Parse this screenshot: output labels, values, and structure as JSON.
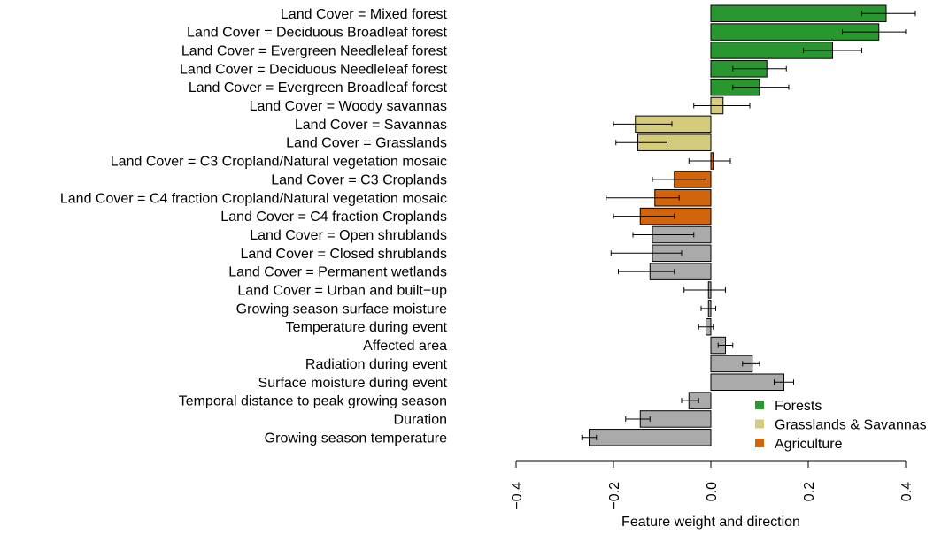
{
  "chart_data": {
    "type": "bar",
    "orientation": "horizontal",
    "xlabel": "Feature weight and direction",
    "ylabel": "",
    "xlim": [
      -0.4,
      0.4
    ],
    "x_ticks": [
      -0.4,
      -0.2,
      0.0,
      0.2,
      0.4
    ],
    "x_tick_labels": [
      "−0.4",
      "−0.2",
      "0.0",
      "0.2",
      "0.4"
    ],
    "grid": false,
    "legend_position": "bottom-right",
    "legend": [
      {
        "label": "Forests",
        "color": "#2a9630"
      },
      {
        "label": "Grasslands & Savannas",
        "color": "#d4cc7c"
      },
      {
        "label": "Agriculture",
        "color": "#d2640a"
      }
    ],
    "group_colors": {
      "forest": "#2a9630",
      "grass": "#d4cc7c",
      "agri": "#d2640a",
      "other": "#aaaaaa"
    },
    "bars": [
      {
        "label": "Land Cover = Mixed forest",
        "value": 0.36,
        "err_low": 0.31,
        "err_high": 0.42,
        "group": "forest"
      },
      {
        "label": "Land Cover = Deciduous Broadleaf forest",
        "value": 0.345,
        "err_low": 0.27,
        "err_high": 0.4,
        "group": "forest"
      },
      {
        "label": "Land Cover = Evergreen Needleleaf forest",
        "value": 0.25,
        "err_low": 0.19,
        "err_high": 0.31,
        "group": "forest"
      },
      {
        "label": "Land Cover = Deciduous Needleleaf forest",
        "value": 0.115,
        "err_low": 0.045,
        "err_high": 0.155,
        "group": "forest"
      },
      {
        "label": "Land Cover = Evergreen Broadleaf forest",
        "value": 0.1,
        "err_low": 0.045,
        "err_high": 0.16,
        "group": "forest"
      },
      {
        "label": "Land Cover = Woody savannas",
        "value": 0.025,
        "err_low": -0.035,
        "err_high": 0.08,
        "group": "grass"
      },
      {
        "label": "Land Cover = Savannas",
        "value": -0.155,
        "err_low": -0.2,
        "err_high": -0.08,
        "group": "grass"
      },
      {
        "label": "Land Cover = Grasslands",
        "value": -0.15,
        "err_low": -0.195,
        "err_high": -0.09,
        "group": "grass"
      },
      {
        "label": "Land Cover = C3 Cropland/Natural vegetation mosaic",
        "value": 0.005,
        "err_low": -0.045,
        "err_high": 0.04,
        "group": "agri"
      },
      {
        "label": "Land Cover = C3 Croplands",
        "value": -0.075,
        "err_low": -0.12,
        "err_high": -0.01,
        "group": "agri"
      },
      {
        "label": "Land Cover = C4 fraction Cropland/Natural vegetation mosaic",
        "value": -0.115,
        "err_low": -0.215,
        "err_high": -0.065,
        "group": "agri"
      },
      {
        "label": "Land Cover = C4 fraction Croplands",
        "value": -0.145,
        "err_low": -0.2,
        "err_high": -0.075,
        "group": "agri"
      },
      {
        "label": "Land Cover = Open shrublands",
        "value": -0.12,
        "err_low": -0.16,
        "err_high": -0.035,
        "group": "other"
      },
      {
        "label": "Land Cover = Closed shrublands",
        "value": -0.12,
        "err_low": -0.205,
        "err_high": -0.06,
        "group": "other"
      },
      {
        "label": "Land Cover = Permanent wetlands",
        "value": -0.125,
        "err_low": -0.19,
        "err_high": -0.075,
        "group": "other"
      },
      {
        "label": "Land Cover = Urban and built−up",
        "value": -0.005,
        "err_low": -0.055,
        "err_high": 0.03,
        "group": "other"
      },
      {
        "label": "Growing season surface moisture",
        "value": -0.005,
        "err_low": -0.02,
        "err_high": 0.01,
        "group": "other"
      },
      {
        "label": "Temperature during event",
        "value": -0.01,
        "err_low": -0.025,
        "err_high": 0.005,
        "group": "other"
      },
      {
        "label": "Affected area",
        "value": 0.03,
        "err_low": 0.015,
        "err_high": 0.045,
        "group": "other"
      },
      {
        "label": "Radiation during event",
        "value": 0.085,
        "err_low": 0.065,
        "err_high": 0.1,
        "group": "other"
      },
      {
        "label": "Surface moisture during event",
        "value": 0.15,
        "err_low": 0.13,
        "err_high": 0.17,
        "group": "other"
      },
      {
        "label": "Temporal distance to peak growing season",
        "value": -0.045,
        "err_low": -0.06,
        "err_high": -0.025,
        "group": "other"
      },
      {
        "label": "Duration",
        "value": -0.145,
        "err_low": -0.175,
        "err_high": -0.125,
        "group": "other"
      },
      {
        "label": "Growing season temperature",
        "value": -0.25,
        "err_low": -0.265,
        "err_high": -0.235,
        "group": "other"
      }
    ]
  }
}
